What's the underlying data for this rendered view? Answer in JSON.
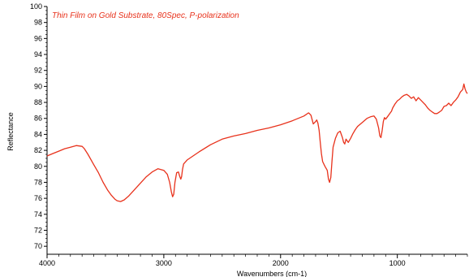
{
  "chart_data": {
    "type": "line",
    "title": "Thin Film on Gold Substrate, 80Spec, P-polarization",
    "xlabel": "Wavenumbers (cm-1)",
    "ylabel": "Reflectance",
    "xlim": [
      4000,
      400
    ],
    "ylim": [
      69,
      100
    ],
    "x_reversed": true,
    "x_ticks": [
      4000,
      3000,
      2000,
      1000
    ],
    "x_tick_labels": [
      "4000",
      "3000",
      "2000",
      "1000"
    ],
    "y_ticks": [
      70,
      72,
      74,
      76,
      78,
      80,
      82,
      84,
      86,
      88,
      90,
      92,
      94,
      96,
      98,
      100
    ],
    "y_tick_labels": [
      "70",
      "72",
      "74",
      "76",
      "78",
      "80",
      "82",
      "84",
      "86",
      "88",
      "90",
      "92",
      "94",
      "96",
      "98",
      "100"
    ],
    "grid": false,
    "line_color": "#e8321c",
    "title_color": "#e8321c",
    "series": [
      {
        "x": [
          4000,
          3950,
          3900,
          3850,
          3800,
          3750,
          3700,
          3680,
          3650,
          3600,
          3560,
          3520,
          3480,
          3450,
          3420,
          3400,
          3370,
          3340,
          3300,
          3250,
          3200,
          3150,
          3100,
          3050,
          3000,
          2970,
          2950,
          2935,
          2925,
          2915,
          2905,
          2890,
          2875,
          2865,
          2855,
          2848,
          2840,
          2830,
          2800,
          2700,
          2600,
          2500,
          2400,
          2300,
          2200,
          2100,
          2000,
          1900,
          1800,
          1760,
          1740,
          1720,
          1700,
          1690,
          1680,
          1670,
          1660,
          1650,
          1640,
          1620,
          1600,
          1590,
          1580,
          1570,
          1560,
          1550,
          1530,
          1510,
          1490,
          1470,
          1460,
          1450,
          1440,
          1420,
          1400,
          1380,
          1360,
          1340,
          1300,
          1260,
          1230,
          1200,
          1180,
          1160,
          1150,
          1140,
          1130,
          1120,
          1110,
          1100,
          1080,
          1060,
          1050,
          1040,
          1020,
          1000,
          980,
          960,
          940,
          920,
          900,
          880,
          860,
          840,
          820,
          800,
          780,
          760,
          740,
          720,
          700,
          680,
          660,
          640,
          620,
          600,
          580,
          560,
          540,
          520,
          500,
          480,
          460,
          440,
          430,
          420,
          410,
          400
        ],
        "y": [
          81.3,
          81.6,
          81.9,
          82.2,
          82.4,
          82.6,
          82.5,
          82.2,
          81.5,
          80.2,
          79.2,
          78.0,
          77.0,
          76.4,
          75.9,
          75.7,
          75.6,
          75.8,
          76.3,
          77.1,
          77.9,
          78.7,
          79.3,
          79.7,
          79.5,
          79.0,
          78.0,
          76.8,
          76.2,
          76.5,
          78.0,
          79.2,
          79.3,
          78.8,
          78.4,
          78.7,
          79.6,
          80.3,
          80.8,
          81.8,
          82.7,
          83.4,
          83.8,
          84.1,
          84.5,
          84.8,
          85.2,
          85.7,
          86.3,
          86.7,
          86.4,
          85.3,
          85.6,
          85.8,
          85.4,
          84.5,
          83.0,
          81.6,
          80.6,
          80.0,
          79.5,
          78.4,
          78.0,
          78.6,
          80.6,
          82.4,
          83.5,
          84.2,
          84.4,
          83.6,
          83.0,
          82.8,
          83.4,
          83.0,
          83.5,
          84.1,
          84.6,
          85.0,
          85.5,
          86.0,
          86.2,
          86.3,
          85.9,
          84.8,
          83.8,
          83.6,
          84.5,
          85.6,
          86.1,
          85.9,
          86.3,
          86.7,
          86.9,
          87.3,
          87.8,
          88.2,
          88.4,
          88.7,
          88.9,
          89.0,
          88.8,
          88.5,
          88.7,
          88.2,
          88.6,
          88.3,
          88.0,
          87.7,
          87.3,
          87.0,
          86.8,
          86.6,
          86.6,
          86.8,
          87.0,
          87.5,
          87.6,
          87.9,
          87.6,
          88.0,
          88.3,
          88.7,
          89.3,
          89.6,
          90.3,
          89.7,
          89.3,
          89.1
        ]
      }
    ]
  }
}
